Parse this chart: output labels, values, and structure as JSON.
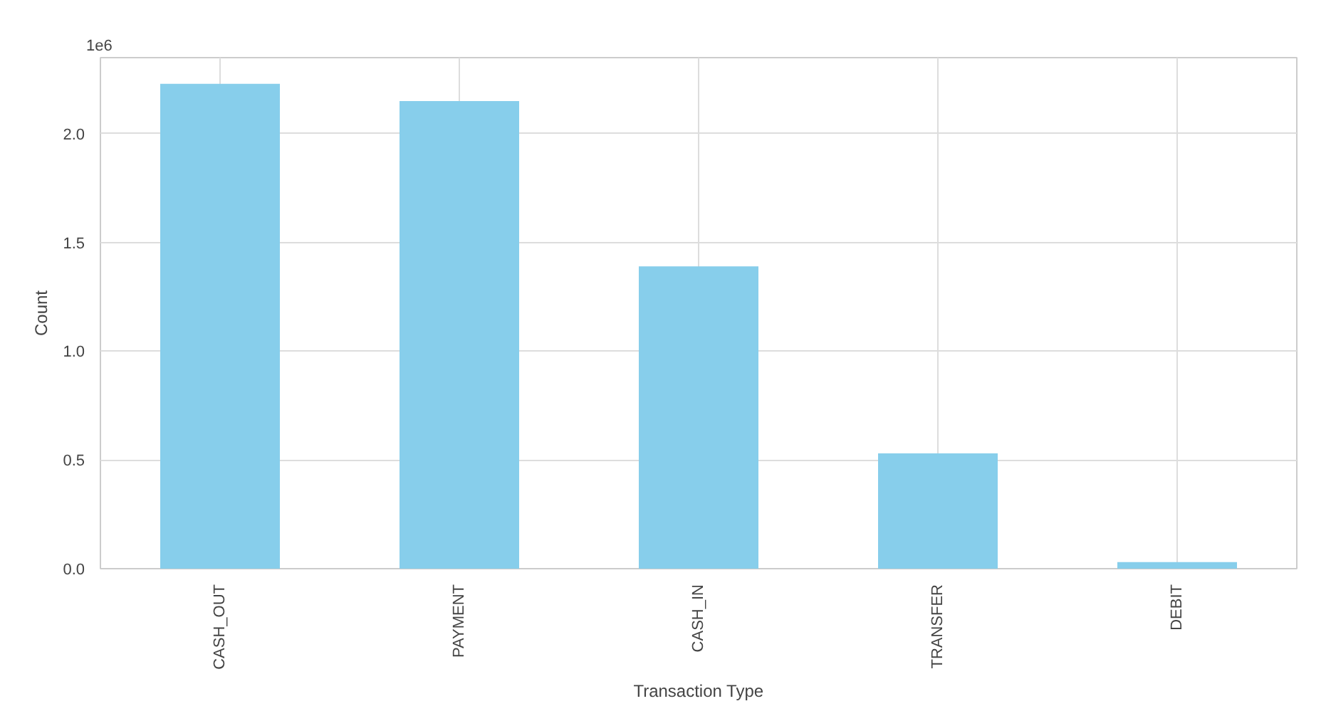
{
  "chart_data": {
    "type": "bar",
    "xlabel": "Transaction Type",
    "ylabel": "Count",
    "categories": [
      "CASH_OUT",
      "PAYMENT",
      "CASH_IN",
      "TRANSFER",
      "DEBIT"
    ],
    "values": [
      2.23,
      2.15,
      1.39,
      0.53,
      0.03
    ],
    "color": "#87ceeb",
    "ylim": [
      0,
      2.35
    ],
    "yticks": [
      {
        "value": 0,
        "label": "0.0"
      },
      {
        "value": 0.5,
        "label": "0.5"
      },
      {
        "value": 1,
        "label": "1.0"
      },
      {
        "value": 1.5,
        "label": "1.5"
      },
      {
        "value": 2,
        "label": "2.0"
      }
    ],
    "annotations": [
      "1e6"
    ],
    "grid": true
  }
}
